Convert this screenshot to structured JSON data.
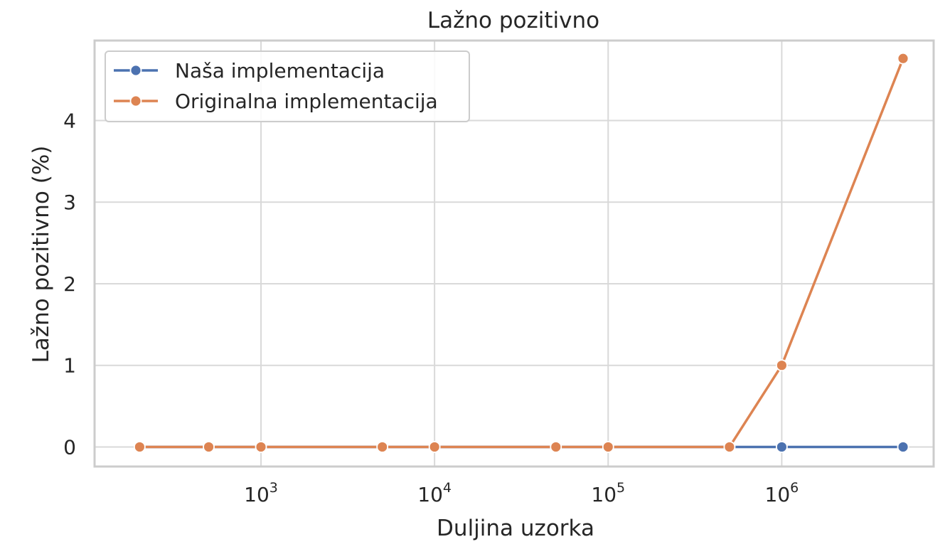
{
  "chart_data": {
    "type": "line",
    "title": "Lažno pozitivno",
    "xlabel": "Duljina uzorka",
    "ylabel": "Lažno pozitivno (%)",
    "x_scale": "log",
    "x": [
      200,
      500,
      1000,
      5000,
      10000,
      50000,
      100000,
      500000,
      1000000,
      5000000
    ],
    "xlim": [
      110,
      7500000
    ],
    "ylim": [
      -0.24,
      4.98
    ],
    "x_ticks": [
      {
        "base": "10",
        "exp": "3",
        "value": 1000
      },
      {
        "base": "10",
        "exp": "4",
        "value": 10000
      },
      {
        "base": "10",
        "exp": "5",
        "value": 100000
      },
      {
        "base": "10",
        "exp": "6",
        "value": 1000000
      }
    ],
    "y_ticks": [
      0,
      1,
      2,
      3,
      4
    ],
    "grid": true,
    "legend": "upper-left",
    "series": [
      {
        "name": "Naša implementacija",
        "color": "#4c72b0",
        "marker": "circle",
        "values": [
          0,
          0,
          0,
          0,
          0,
          0,
          0,
          0,
          0,
          0
        ]
      },
      {
        "name": "Originalna implementacija",
        "color": "#dd8452",
        "marker": "circle",
        "values": [
          0,
          0,
          0,
          0,
          0,
          0,
          0,
          0,
          1.0,
          4.76
        ]
      }
    ],
    "frame_color": "#cccccc",
    "grid_color": "#d9d9d9"
  }
}
